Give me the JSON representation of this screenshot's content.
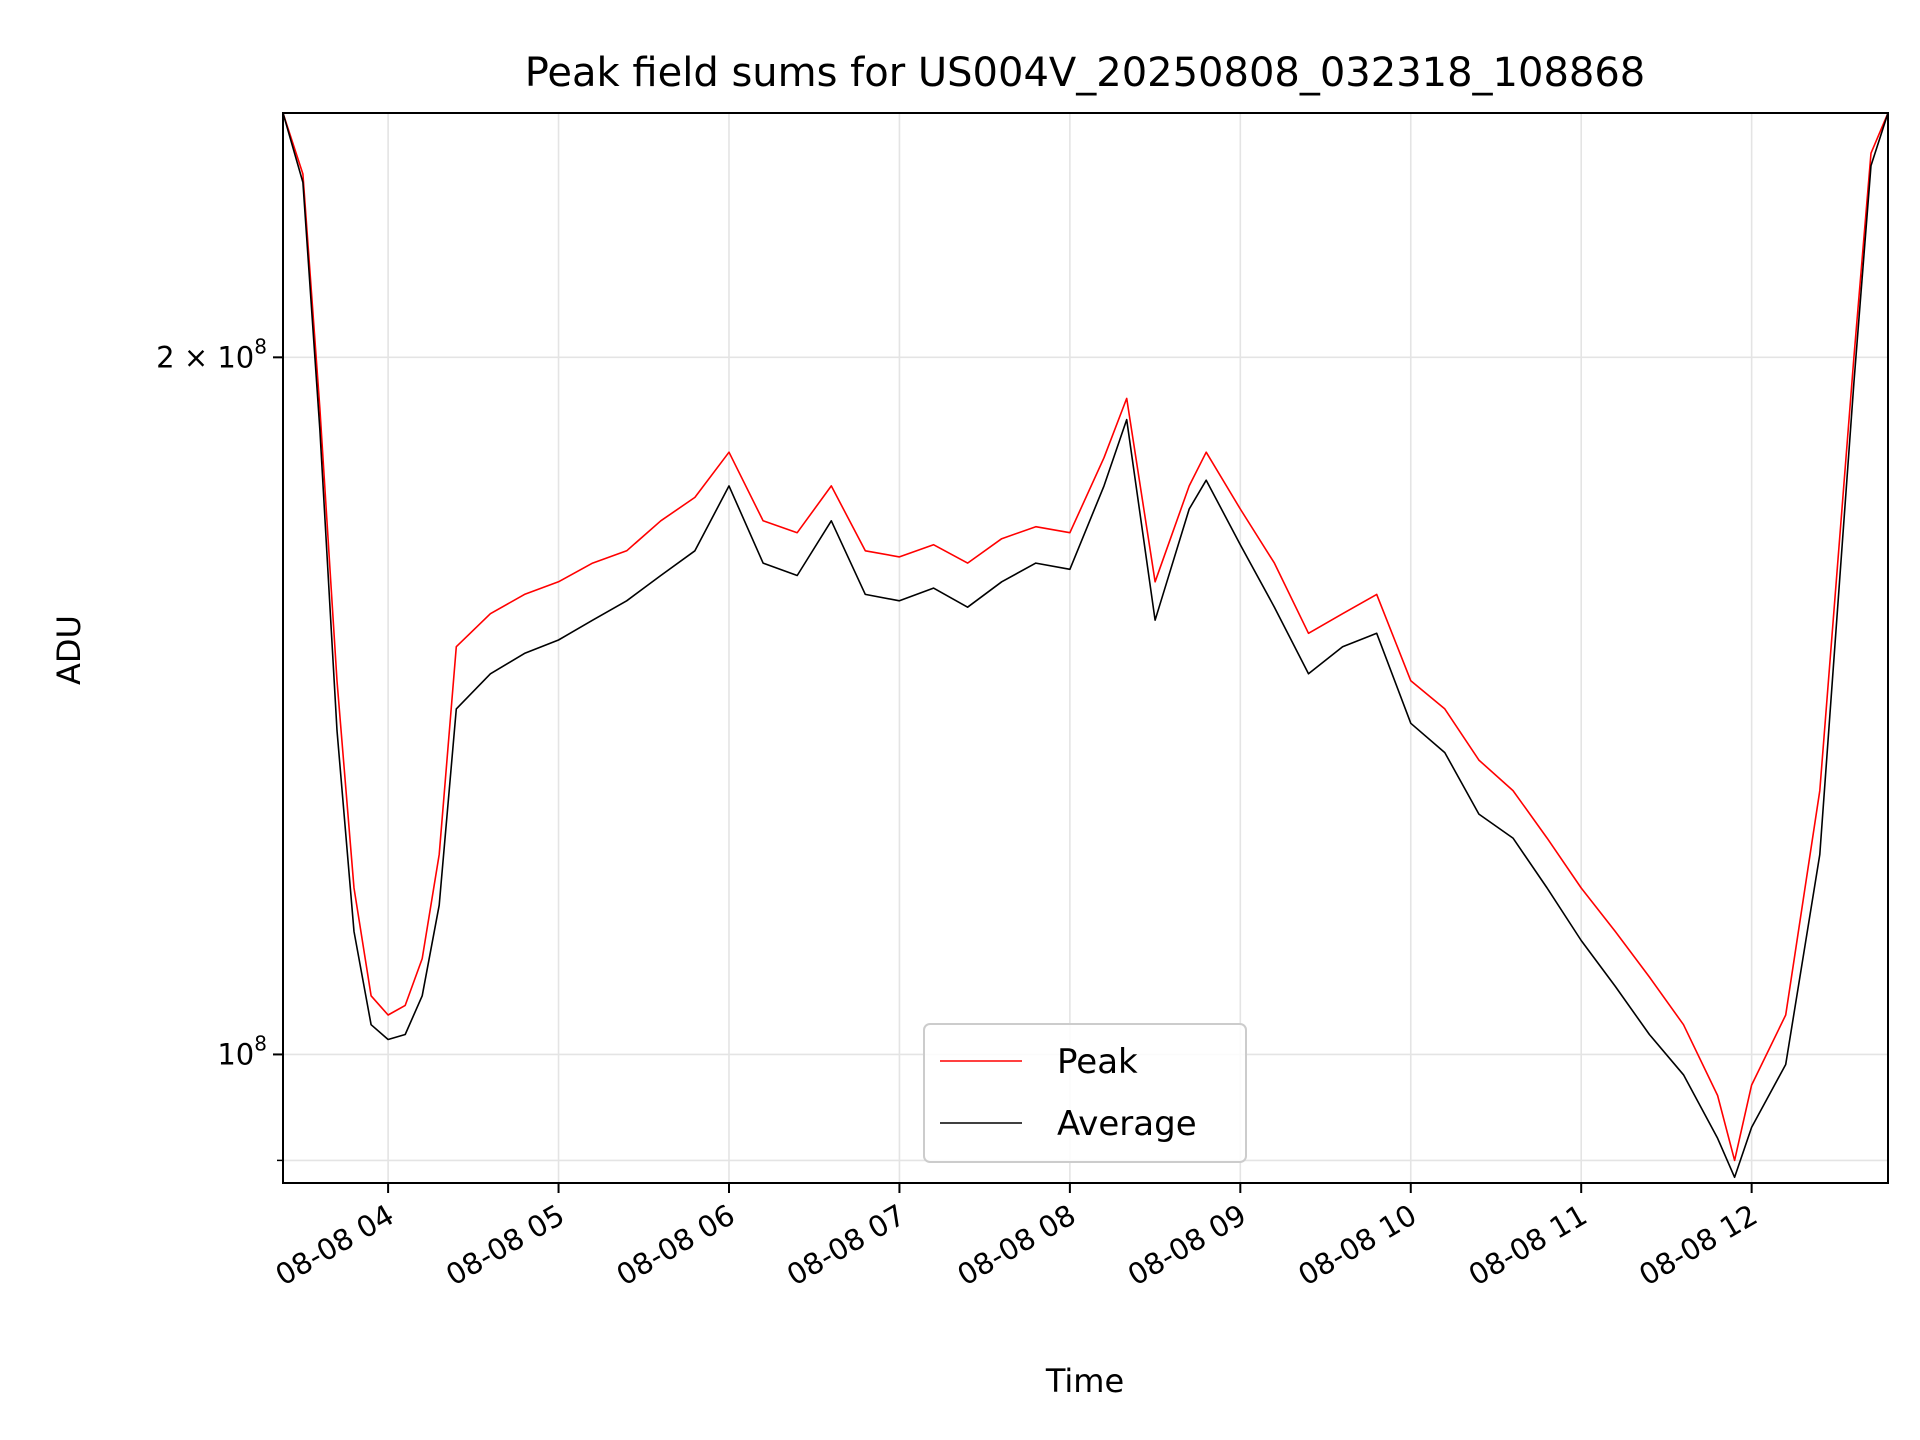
{
  "chart_data": {
    "type": "line",
    "title": "Peak field sums for US004V_20250808_032318_108868",
    "xlabel": "Time",
    "ylabel": "ADU",
    "yscale": "log",
    "ylim": [
      88000000,
      255000000
    ],
    "xlim": [
      "2025-08-08 03:23",
      "2025-08-08 12:48"
    ],
    "x_ticks": [
      {
        "t": "2025-08-08 04:00",
        "label": "08-08 04"
      },
      {
        "t": "2025-08-08 05:00",
        "label": "08-08 05"
      },
      {
        "t": "2025-08-08 06:00",
        "label": "08-08 06"
      },
      {
        "t": "2025-08-08 07:00",
        "label": "08-08 07"
      },
      {
        "t": "2025-08-08 08:00",
        "label": "08-08 08"
      },
      {
        "t": "2025-08-08 09:00",
        "label": "08-08 09"
      },
      {
        "t": "2025-08-08 10:00",
        "label": "08-08 10"
      },
      {
        "t": "2025-08-08 11:00",
        "label": "08-08 11"
      },
      {
        "t": "2025-08-08 12:00",
        "label": "08-08 12"
      }
    ],
    "y_ticks": [
      {
        "v": 100000000,
        "base": "10",
        "exp": "8",
        "mult": ""
      },
      {
        "v": 200000000,
        "base": "10",
        "exp": "8",
        "mult": "2 × "
      }
    ],
    "grid": true,
    "legend_position": "lower-center",
    "series": [
      {
        "name": "Peak",
        "color": "#ff0000",
        "points": [
          [
            "2025-08-08 03:23",
            255000000
          ],
          [
            "2025-08-08 03:30",
            240000000
          ],
          [
            "2025-08-08 03:36",
            190000000
          ],
          [
            "2025-08-08 03:42",
            145000000
          ],
          [
            "2025-08-08 03:48",
            118000000
          ],
          [
            "2025-08-08 03:54",
            106000000
          ],
          [
            "2025-08-08 04:00",
            104000000
          ],
          [
            "2025-08-08 04:06",
            105000000
          ],
          [
            "2025-08-08 04:12",
            110000000
          ],
          [
            "2025-08-08 04:18",
            122000000
          ],
          [
            "2025-08-08 04:24",
            150000000
          ],
          [
            "2025-08-08 04:36",
            155000000
          ],
          [
            "2025-08-08 04:48",
            158000000
          ],
          [
            "2025-08-08 05:00",
            160000000
          ],
          [
            "2025-08-08 05:12",
            163000000
          ],
          [
            "2025-08-08 05:24",
            165000000
          ],
          [
            "2025-08-08 05:36",
            170000000
          ],
          [
            "2025-08-08 05:48",
            174000000
          ],
          [
            "2025-08-08 06:00",
            182000000
          ],
          [
            "2025-08-08 06:12",
            170000000
          ],
          [
            "2025-08-08 06:24",
            168000000
          ],
          [
            "2025-08-08 06:36",
            176000000
          ],
          [
            "2025-08-08 06:48",
            165000000
          ],
          [
            "2025-08-08 07:00",
            164000000
          ],
          [
            "2025-08-08 07:12",
            166000000
          ],
          [
            "2025-08-08 07:24",
            163000000
          ],
          [
            "2025-08-08 07:36",
            167000000
          ],
          [
            "2025-08-08 07:48",
            169000000
          ],
          [
            "2025-08-08 08:00",
            168000000
          ],
          [
            "2025-08-08 08:12",
            181000000
          ],
          [
            "2025-08-08 08:20",
            192000000
          ],
          [
            "2025-08-08 08:30",
            160000000
          ],
          [
            "2025-08-08 08:42",
            176000000
          ],
          [
            "2025-08-08 08:48",
            182000000
          ],
          [
            "2025-08-08 09:00",
            172000000
          ],
          [
            "2025-08-08 09:12",
            163000000
          ],
          [
            "2025-08-08 09:24",
            152000000
          ],
          [
            "2025-08-08 09:36",
            155000000
          ],
          [
            "2025-08-08 09:48",
            158000000
          ],
          [
            "2025-08-08 10:00",
            145000000
          ],
          [
            "2025-08-08 10:12",
            141000000
          ],
          [
            "2025-08-08 10:24",
            134000000
          ],
          [
            "2025-08-08 10:36",
            130000000
          ],
          [
            "2025-08-08 10:48",
            124000000
          ],
          [
            "2025-08-08 11:00",
            118000000
          ],
          [
            "2025-08-08 11:12",
            113000000
          ],
          [
            "2025-08-08 11:24",
            108000000
          ],
          [
            "2025-08-08 11:36",
            103000000
          ],
          [
            "2025-08-08 11:48",
            96000000
          ],
          [
            "2025-08-08 11:54",
            90000000
          ],
          [
            "2025-08-08 12:00",
            97000000
          ],
          [
            "2025-08-08 12:12",
            104000000
          ],
          [
            "2025-08-08 12:24",
            130000000
          ],
          [
            "2025-08-08 12:36",
            200000000
          ],
          [
            "2025-08-08 12:42",
            245000000
          ],
          [
            "2025-08-08 12:48",
            255000000
          ]
        ]
      },
      {
        "name": "Average",
        "color": "#000000",
        "points": [
          [
            "2025-08-08 03:23",
            255000000
          ],
          [
            "2025-08-08 03:30",
            238000000
          ],
          [
            "2025-08-08 03:36",
            186000000
          ],
          [
            "2025-08-08 03:42",
            138000000
          ],
          [
            "2025-08-08 03:48",
            113000000
          ],
          [
            "2025-08-08 03:54",
            103000000
          ],
          [
            "2025-08-08 04:00",
            101500000
          ],
          [
            "2025-08-08 04:06",
            102000000
          ],
          [
            "2025-08-08 04:12",
            106000000
          ],
          [
            "2025-08-08 04:18",
            116000000
          ],
          [
            "2025-08-08 04:24",
            141000000
          ],
          [
            "2025-08-08 04:36",
            146000000
          ],
          [
            "2025-08-08 04:48",
            149000000
          ],
          [
            "2025-08-08 05:00",
            151000000
          ],
          [
            "2025-08-08 05:12",
            154000000
          ],
          [
            "2025-08-08 05:24",
            157000000
          ],
          [
            "2025-08-08 05:36",
            161000000
          ],
          [
            "2025-08-08 05:48",
            165000000
          ],
          [
            "2025-08-08 06:00",
            176000000
          ],
          [
            "2025-08-08 06:12",
            163000000
          ],
          [
            "2025-08-08 06:24",
            161000000
          ],
          [
            "2025-08-08 06:36",
            170000000
          ],
          [
            "2025-08-08 06:48",
            158000000
          ],
          [
            "2025-08-08 07:00",
            157000000
          ],
          [
            "2025-08-08 07:12",
            159000000
          ],
          [
            "2025-08-08 07:24",
            156000000
          ],
          [
            "2025-08-08 07:36",
            160000000
          ],
          [
            "2025-08-08 07:48",
            163000000
          ],
          [
            "2025-08-08 08:00",
            162000000
          ],
          [
            "2025-08-08 08:12",
            176000000
          ],
          [
            "2025-08-08 08:20",
            188000000
          ],
          [
            "2025-08-08 08:30",
            154000000
          ],
          [
            "2025-08-08 08:42",
            172000000
          ],
          [
            "2025-08-08 08:48",
            177000000
          ],
          [
            "2025-08-08 09:00",
            166000000
          ],
          [
            "2025-08-08 09:12",
            156000000
          ],
          [
            "2025-08-08 09:24",
            146000000
          ],
          [
            "2025-08-08 09:36",
            150000000
          ],
          [
            "2025-08-08 09:48",
            152000000
          ],
          [
            "2025-08-08 10:00",
            139000000
          ],
          [
            "2025-08-08 10:12",
            135000000
          ],
          [
            "2025-08-08 10:24",
            127000000
          ],
          [
            "2025-08-08 10:36",
            124000000
          ],
          [
            "2025-08-08 10:48",
            118000000
          ],
          [
            "2025-08-08 11:00",
            112000000
          ],
          [
            "2025-08-08 11:12",
            107000000
          ],
          [
            "2025-08-08 11:24",
            102000000
          ],
          [
            "2025-08-08 11:36",
            98000000
          ],
          [
            "2025-08-08 11:48",
            92000000
          ],
          [
            "2025-08-08 11:54",
            88500000
          ],
          [
            "2025-08-08 12:00",
            93000000
          ],
          [
            "2025-08-08 12:12",
            99000000
          ],
          [
            "2025-08-08 12:24",
            122000000
          ],
          [
            "2025-08-08 12:36",
            195000000
          ],
          [
            "2025-08-08 12:42",
            242000000
          ],
          [
            "2025-08-08 12:48",
            255000000
          ]
        ]
      }
    ]
  }
}
